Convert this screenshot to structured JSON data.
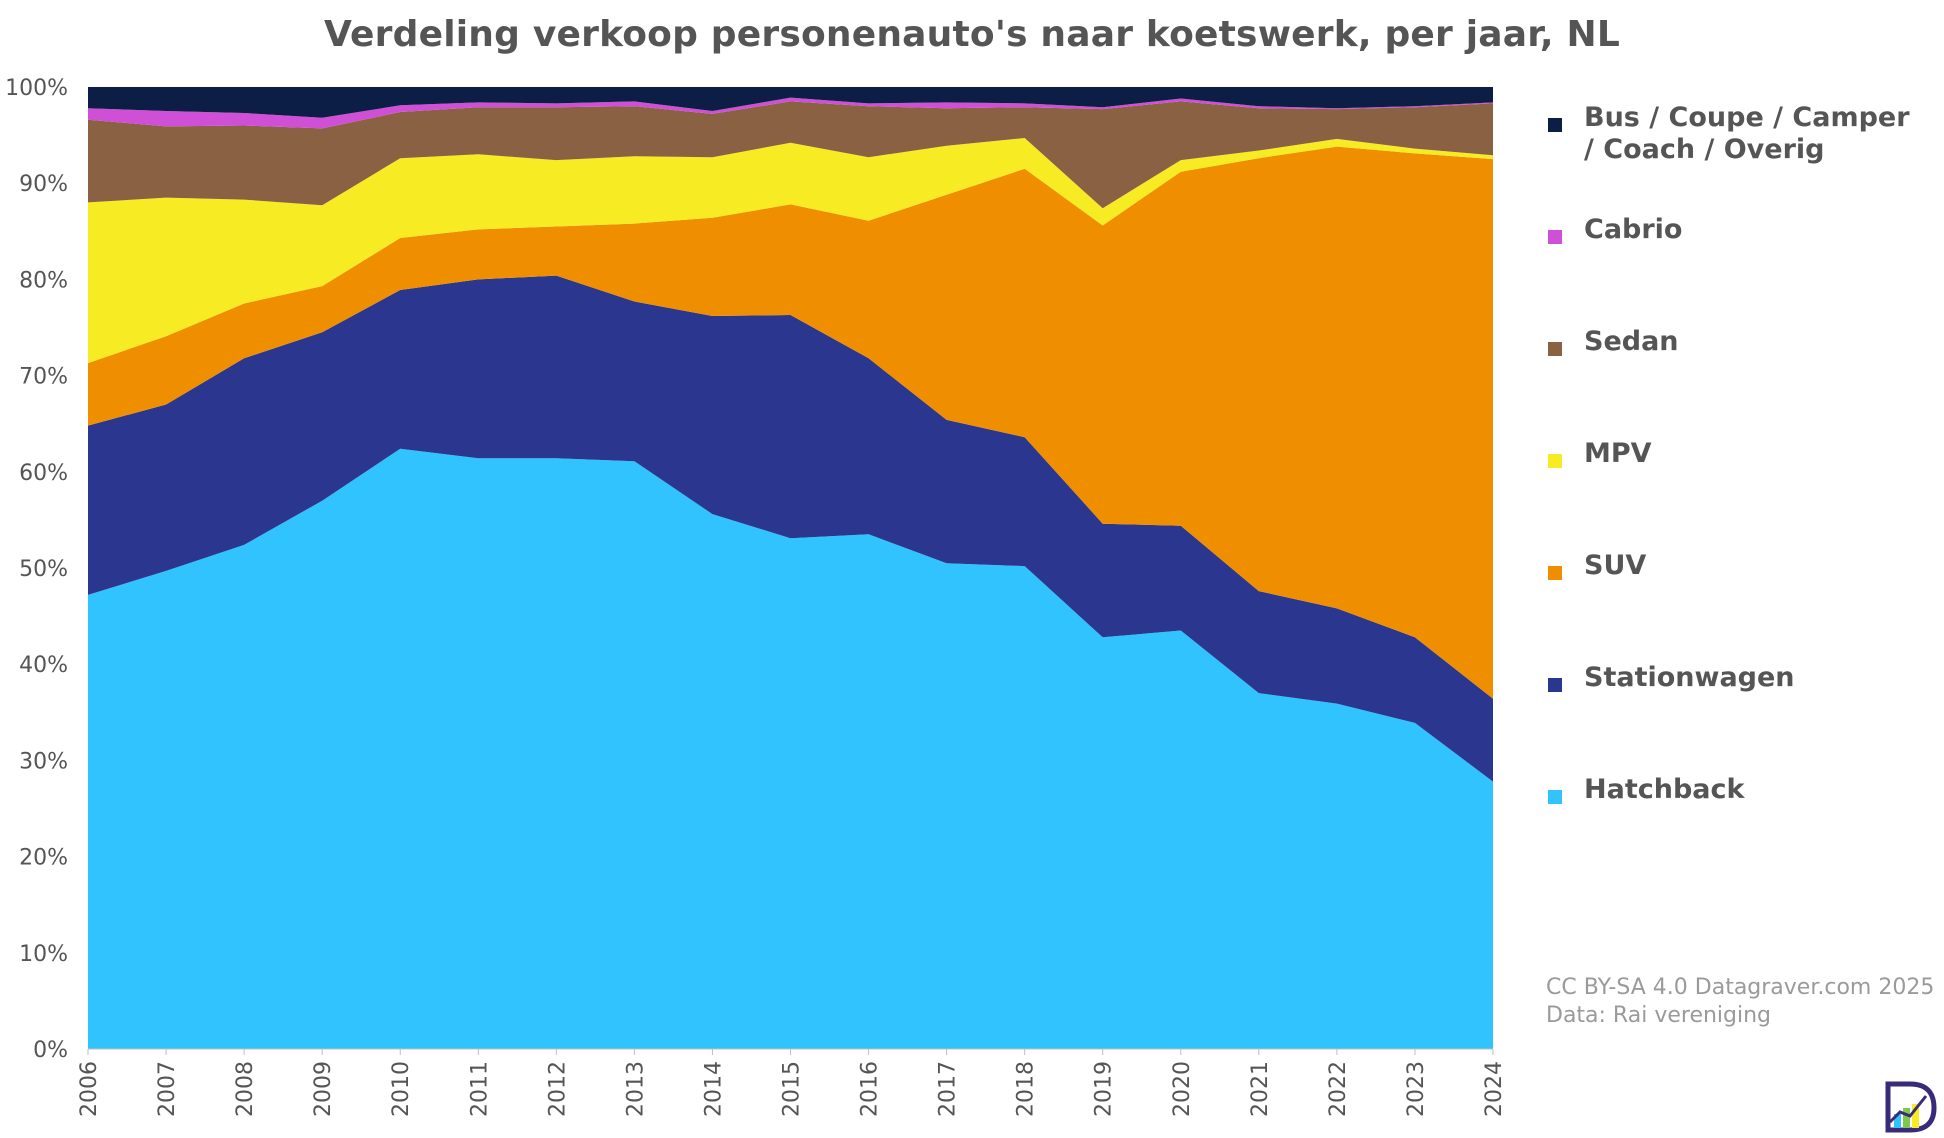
{
  "chart_data": {
    "type": "area",
    "stacked": true,
    "percent": true,
    "title": "Verdeling verkoop personenauto's naar koetswerk, per jaar, NL",
    "x": [
      "2006",
      "2007",
      "2008",
      "2009",
      "2010",
      "2011",
      "2012",
      "2013",
      "2014",
      "2015",
      "2016",
      "2017",
      "2018",
      "2019",
      "2020",
      "2021",
      "2022",
      "2023",
      "2024"
    ],
    "y_ticks": [
      "0%",
      "10%",
      "20%",
      "30%",
      "40%",
      "50%",
      "60%",
      "70%",
      "80%",
      "90%",
      "100%"
    ],
    "ylim": [
      0,
      100
    ],
    "grid": false,
    "legend_position": "right",
    "series": [
      {
        "name": "Hatchback",
        "color": "#31c3fd",
        "values": [
          47.2,
          49.7,
          52.4,
          57.0,
          62.4,
          61.4,
          61.4,
          61.1,
          55.6,
          53.1,
          53.5,
          50.5,
          50.2,
          42.8,
          43.5,
          37.0,
          35.9,
          33.9,
          27.8
        ]
      },
      {
        "name": "Stationwagen",
        "color": "#2b378e",
        "values": [
          17.6,
          17.3,
          19.4,
          17.5,
          16.5,
          18.6,
          19.0,
          16.6,
          20.6,
          23.2,
          18.3,
          14.9,
          13.4,
          11.8,
          10.9,
          10.6,
          9.9,
          8.9,
          8.6
        ]
      },
      {
        "name": "SUV",
        "color": "#ef8f00",
        "values": [
          6.5,
          7.1,
          5.7,
          4.8,
          5.4,
          5.2,
          5.1,
          8.1,
          10.2,
          11.5,
          14.3,
          23.4,
          27.9,
          31.0,
          36.8,
          45.0,
          48.0,
          50.3,
          56.1
        ]
      },
      {
        "name": "MPV",
        "color": "#f7ec23",
        "values": [
          16.7,
          14.4,
          10.8,
          8.4,
          8.3,
          7.8,
          6.9,
          7.0,
          6.3,
          6.4,
          6.6,
          5.1,
          3.2,
          1.8,
          1.2,
          0.8,
          0.8,
          0.5,
          0.4
        ]
      },
      {
        "name": "Sedan",
        "color": "#8b6144",
        "values": [
          8.6,
          7.4,
          7.7,
          8.0,
          4.8,
          4.9,
          5.5,
          5.2,
          4.5,
          4.3,
          5.3,
          3.9,
          3.2,
          10.3,
          6.1,
          4.4,
          3.1,
          4.3,
          5.4
        ]
      },
      {
        "name": "Cabrio",
        "color": "#cf4fd6",
        "values": [
          1.2,
          1.6,
          1.3,
          1.1,
          0.7,
          0.5,
          0.4,
          0.5,
          0.3,
          0.4,
          0.3,
          0.6,
          0.4,
          0.2,
          0.3,
          0.2,
          0.1,
          0.1,
          0.1
        ]
      },
      {
        "name": "Bus / Coupe / Camper / Coach / Overig",
        "color": "#0c1e45",
        "values": [
          2.2,
          2.5,
          2.7,
          3.2,
          1.9,
          1.6,
          1.7,
          1.5,
          2.5,
          1.1,
          1.7,
          1.6,
          1.7,
          2.1,
          1.2,
          2.0,
          2.2,
          2.0,
          1.6
        ]
      }
    ]
  },
  "credits": {
    "license": "CC BY-SA 4.0 Datagraver.com 2025",
    "source": "Data: Rai vereniging"
  }
}
